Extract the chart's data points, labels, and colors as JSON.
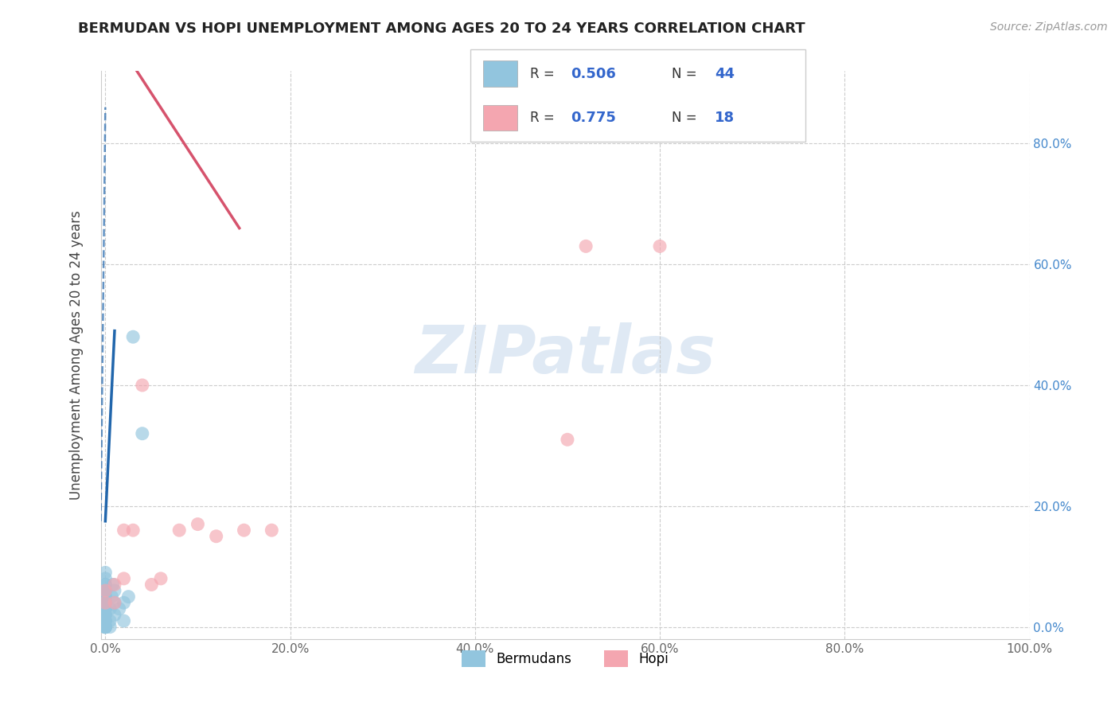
{
  "title": "BERMUDAN VS HOPI UNEMPLOYMENT AMONG AGES 20 TO 24 YEARS CORRELATION CHART",
  "source": "Source: ZipAtlas.com",
  "ylabel": "Unemployment Among Ages 20 to 24 years",
  "xlim": [
    -0.005,
    1.0
  ],
  "ylim": [
    -0.02,
    0.92
  ],
  "xticks": [
    0.0,
    0.2,
    0.4,
    0.6,
    0.8,
    1.0
  ],
  "yticks": [
    0.0,
    0.2,
    0.4,
    0.6,
    0.8
  ],
  "xticklabels": [
    "0.0%",
    "20.0%",
    "40.0%",
    "60.0%",
    "80.0%",
    "100.0%"
  ],
  "yticklabels_right": [
    "0.0%",
    "20.0%",
    "40.0%",
    "60.0%",
    "80.0%"
  ],
  "blue_color": "#92c5de",
  "pink_color": "#f4a6b0",
  "blue_line_color": "#2166ac",
  "pink_line_color": "#d6536d",
  "watermark": "ZIPatlas",
  "bermudans_x": [
    0.0,
    0.0,
    0.0,
    0.0,
    0.0,
    0.0,
    0.0,
    0.0,
    0.0,
    0.0,
    0.0,
    0.0,
    0.0,
    0.0,
    0.0,
    0.0,
    0.0,
    0.0,
    0.0,
    0.0,
    0.0,
    0.0,
    0.0,
    0.0,
    0.0,
    0.0,
    0.0,
    0.0,
    0.0,
    0.0,
    0.005,
    0.005,
    0.005,
    0.007,
    0.008,
    0.01,
    0.01,
    0.01,
    0.015,
    0.02,
    0.02,
    0.025,
    0.03,
    0.04
  ],
  "bermudans_y": [
    0.0,
    0.0,
    0.0,
    0.0,
    0.0,
    0.0,
    0.0,
    0.0,
    0.0,
    0.0,
    0.01,
    0.01,
    0.01,
    0.02,
    0.02,
    0.02,
    0.03,
    0.03,
    0.03,
    0.04,
    0.04,
    0.05,
    0.05,
    0.05,
    0.06,
    0.06,
    0.07,
    0.07,
    0.08,
    0.09,
    0.0,
    0.01,
    0.03,
    0.05,
    0.07,
    0.02,
    0.04,
    0.06,
    0.03,
    0.01,
    0.04,
    0.05,
    0.48,
    0.32
  ],
  "hopi_x": [
    0.0,
    0.0,
    0.01,
    0.01,
    0.02,
    0.02,
    0.03,
    0.04,
    0.05,
    0.06,
    0.08,
    0.1,
    0.12,
    0.15,
    0.18,
    0.5,
    0.52,
    0.6
  ],
  "hopi_y": [
    0.04,
    0.06,
    0.04,
    0.07,
    0.08,
    0.16,
    0.16,
    0.4,
    0.07,
    0.08,
    0.16,
    0.17,
    0.15,
    0.16,
    0.16,
    0.31,
    0.63,
    0.63
  ],
  "blue_solid_line": [
    [
      0.0,
      0.01
    ],
    [
      0.175,
      0.49
    ]
  ],
  "blue_dashed_line": [
    [
      -0.005,
      0.0
    ],
    [
      0.175,
      0.86
    ]
  ],
  "pink_solid_line": [
    [
      0.0,
      0.145
    ],
    [
      1.0,
      0.66
    ]
  ]
}
